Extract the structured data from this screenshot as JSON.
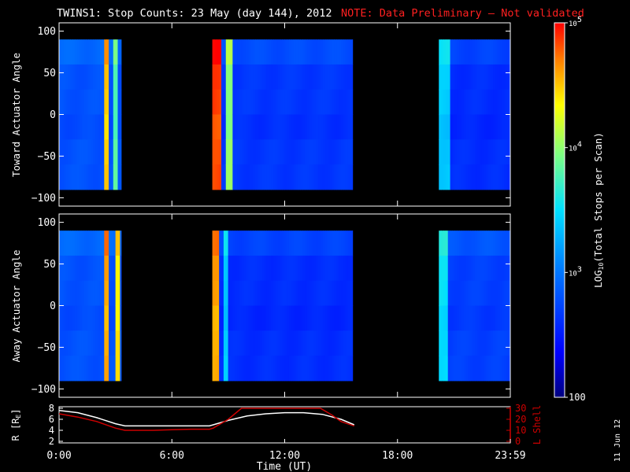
{
  "title": "TWINS1: Stop Counts: 23 May (day 144), 2012",
  "note": "NOTE: Data Preliminary – Not validated",
  "date_stamp": "11 Jun 12",
  "colors": {
    "note": "#ff2020",
    "lshell": "#cc0000",
    "radius": "#ffffff",
    "axes": "#ffffff"
  },
  "chart_data": [
    {
      "type": "heatmap",
      "ylabel": "Toward Actuator Angle",
      "ylim": [
        -110,
        110
      ],
      "yticks": [
        100,
        50,
        0,
        -50,
        -100
      ],
      "angle_range": [
        -90,
        90
      ],
      "segments": [
        {
          "start_h": 0.0,
          "end_h": 3.3,
          "base_log": 2.8,
          "bright_bands": [
            {
              "center_h": 2.55,
              "width_h": 0.3,
              "log": 4.5
            },
            {
              "center_h": 3.0,
              "width_h": 0.15,
              "log": 3.8
            }
          ]
        },
        {
          "start_h": 8.15,
          "end_h": 15.6,
          "base_log": 2.65,
          "bright_bands": [
            {
              "center_h": 8.4,
              "width_h": 0.45,
              "log": 4.85
            },
            {
              "center_h": 9.0,
              "width_h": 0.35,
              "log": 4.0
            }
          ]
        },
        {
          "start_h": 20.2,
          "end_h": 23.99,
          "base_log": 2.6,
          "bright_bands": [
            {
              "center_h": 20.5,
              "width_h": 0.5,
              "log": 3.4
            }
          ]
        }
      ]
    },
    {
      "type": "heatmap",
      "ylabel": "Away Actuator Angle",
      "ylim": [
        -110,
        110
      ],
      "yticks": [
        100,
        50,
        0,
        -50,
        -100
      ],
      "angle_range": [
        -90,
        90
      ],
      "segments": [
        {
          "start_h": 0.0,
          "end_h": 3.3,
          "base_log": 2.8,
          "bright_bands": [
            {
              "center_h": 2.55,
              "width_h": 0.25,
              "log": 4.6
            },
            {
              "center_h": 3.1,
              "width_h": 0.2,
              "log": 4.4
            }
          ]
        },
        {
          "start_h": 8.15,
          "end_h": 15.6,
          "base_log": 2.6,
          "bright_bands": [
            {
              "center_h": 8.3,
              "width_h": 0.35,
              "log": 4.6
            },
            {
              "center_h": 8.9,
              "width_h": 0.25,
              "log": 3.4
            }
          ]
        },
        {
          "start_h": 20.2,
          "end_h": 23.99,
          "base_log": 2.7,
          "bright_bands": [
            {
              "center_h": 20.4,
              "width_h": 0.6,
              "log": 3.5
            }
          ]
        }
      ]
    },
    {
      "type": "line",
      "ylabel_left": "R [R",
      "ylabel_left_sub": "E",
      "ylabel_right": "L Shell",
      "ylim_left": [
        2,
        8
      ],
      "yticks_left": [
        8,
        6,
        4,
        2
      ],
      "ylim_right": [
        0,
        30
      ],
      "yticks_right": [
        30,
        20,
        10,
        0
      ],
      "xlabel": "Time (UT)",
      "xlim": [
        0,
        24
      ],
      "xticks": [
        {
          "value": 0,
          "label": "0:00"
        },
        {
          "value": 6,
          "label": "6:00"
        },
        {
          "value": 12,
          "label": "12:00"
        },
        {
          "value": 18,
          "label": "18:00"
        },
        {
          "value": 24,
          "label": "23:59"
        }
      ],
      "series": [
        {
          "axis": "left",
          "color": "#ffffff",
          "x": [
            0,
            1,
            2,
            3,
            3.5,
            5,
            6,
            7,
            8,
            8.2,
            9,
            10,
            11,
            12,
            13,
            14,
            15,
            15.7
          ],
          "y": [
            7.6,
            7.2,
            6.3,
            5.2,
            4.8,
            4.8,
            4.8,
            4.8,
            4.8,
            5.0,
            5.8,
            6.6,
            7.0,
            7.2,
            7.2,
            6.9,
            6.0,
            5.0
          ]
        },
        {
          "axis": "right",
          "color": "#cc0000",
          "x": [
            0,
            1,
            2,
            3,
            3.5,
            5,
            6,
            7,
            8,
            8.2,
            9,
            9.7,
            13.9,
            14.5,
            15,
            15.7
          ],
          "y": [
            25,
            22,
            18,
            12,
            10,
            10,
            10.5,
            11,
            11,
            12,
            20,
            30,
            30,
            24,
            18,
            14
          ]
        }
      ]
    }
  ],
  "colorbar": {
    "label": "LOG",
    "label_sub": "10",
    "label_rest": "(Total Stops per Scan)",
    "log_min": 2,
    "log_max": 5,
    "ticks": [
      {
        "log": 5,
        "mantissa": "10",
        "exp": "5"
      },
      {
        "log": 4,
        "mantissa": "10",
        "exp": "4"
      },
      {
        "log": 3,
        "mantissa": "10",
        "exp": "3"
      },
      {
        "log": 2,
        "mantissa": "100",
        "exp": ""
      }
    ]
  }
}
